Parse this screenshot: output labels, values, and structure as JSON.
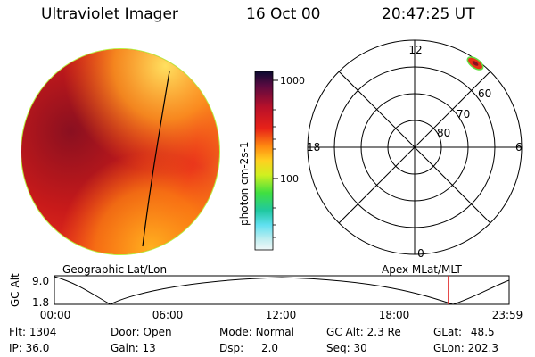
{
  "header": {
    "title": "Ultraviolet Imager",
    "date": "16 Oct 00",
    "time": "20:47:25 UT"
  },
  "colorbar": {
    "label": "photon cm-2s-1",
    "ticks": [
      "1000",
      "100"
    ]
  },
  "polar_plot": {
    "labels": {
      "top": "12",
      "bottom": "0",
      "left": "18",
      "right": "6"
    },
    "latitudes": [
      "60",
      "70",
      "80"
    ]
  },
  "panel_labels": {
    "geographic": "Geographic Lat/Lon",
    "apex": "Apex MLat/MLT"
  },
  "timeline": {
    "ylabel": "GC Alt",
    "ymax": "9.0",
    "ymin": "1.8",
    "ticks": [
      "00:00",
      "06:00",
      "12:00",
      "18:00",
      "23:59"
    ],
    "current_marker_hour": 20.79
  },
  "info": {
    "flt": {
      "label": "Flt:",
      "value": "1304"
    },
    "ip": {
      "label": "IP:",
      "value": "36.0"
    },
    "door": {
      "label": "Door:",
      "value": "Open"
    },
    "gain": {
      "label": "Gain:",
      "value": "13"
    },
    "mode": {
      "label": "Mode:",
      "value": "Normal"
    },
    "dsp": {
      "label": "Dsp:",
      "value": "2.0"
    },
    "gcalt": {
      "label": "GC Alt:",
      "value": "2.3 Re"
    },
    "seq": {
      "label": "Seq:",
      "value": "30"
    },
    "glat": {
      "label": "GLat:",
      "value": "48.5"
    },
    "glon": {
      "label": "GLon:",
      "value": "202.3"
    }
  }
}
